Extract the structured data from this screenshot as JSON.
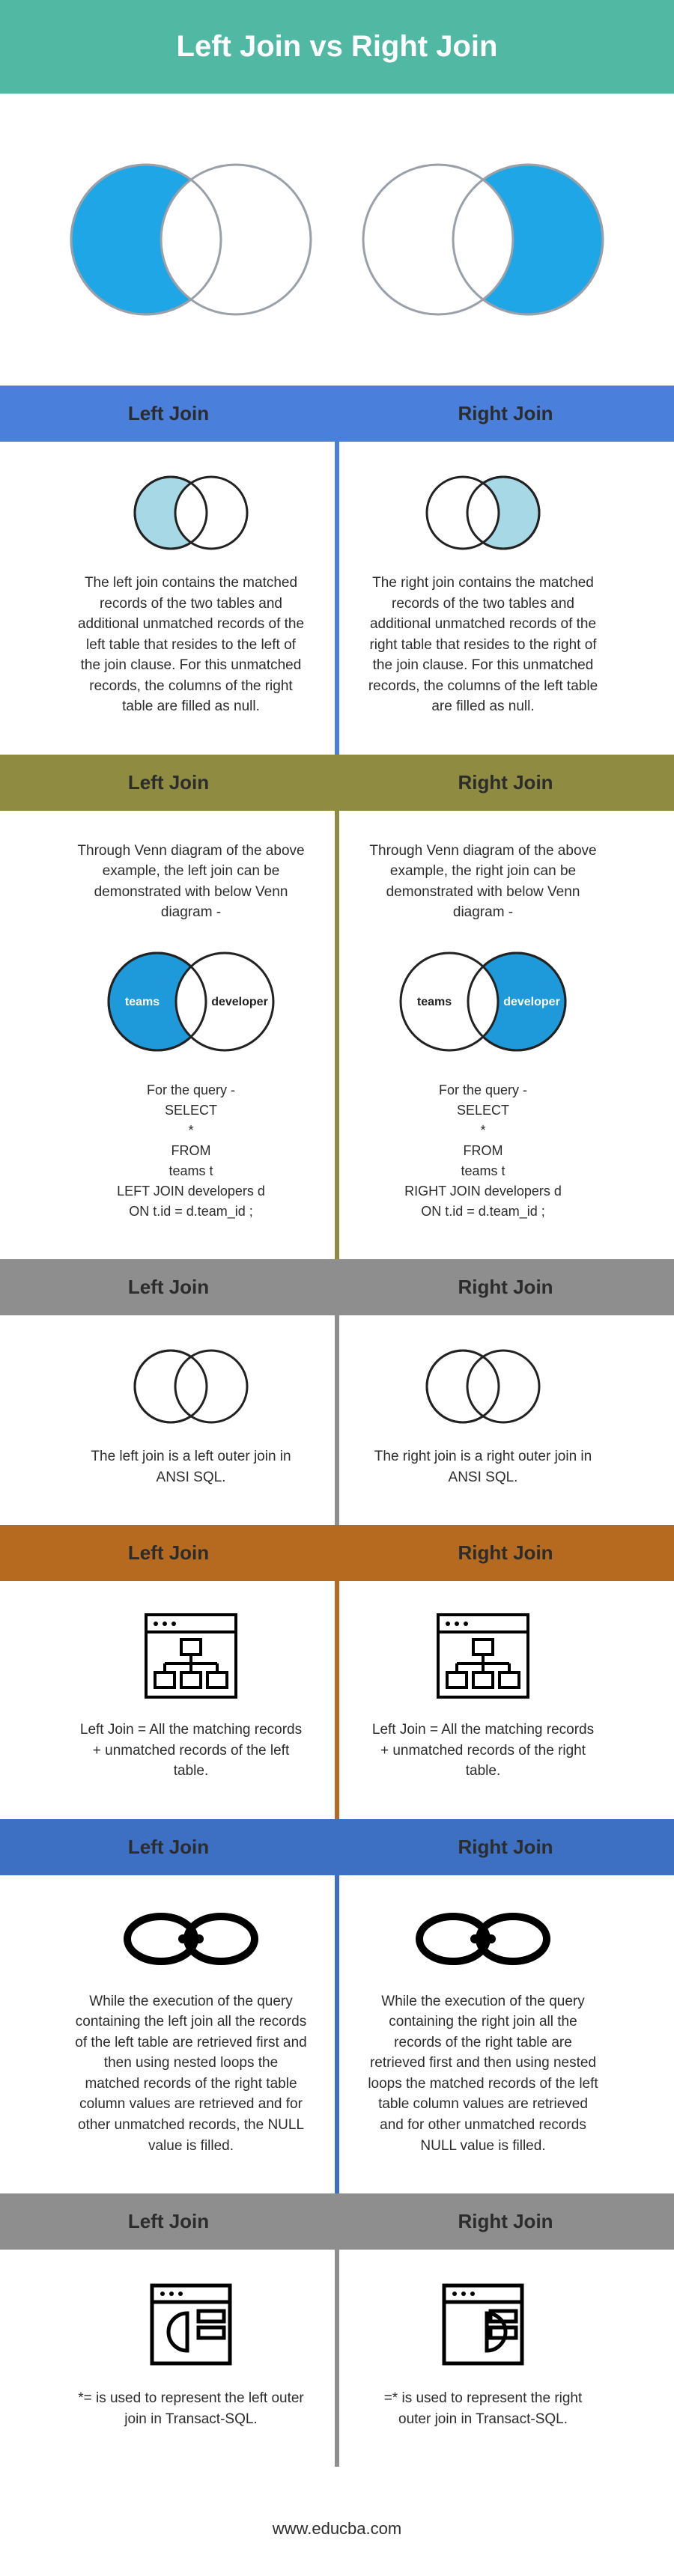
{
  "title": "Left Join vs Right Join",
  "footer": "www.educba.com",
  "hero": {
    "left": {
      "fill_left": "#1ea6e6",
      "fill_right": "#ffffff",
      "stroke": "#9aa0a8"
    },
    "right": {
      "fill_left": "#ffffff",
      "fill_right": "#1ea6e6",
      "stroke": "#9aa0a8"
    }
  },
  "sections": [
    {
      "header_bg": "#4a7fdc",
      "divider": "#4a7fdc",
      "labels": {
        "l": "Left Join",
        "r": "Right Join"
      },
      "venn": {
        "l": {
          "fill_left": "#a6d8e6",
          "fill_right": "#ffffff",
          "stroke": "#222222"
        },
        "r": {
          "fill_left": "#ffffff",
          "fill_right": "#a6d8e6",
          "stroke": "#222222"
        }
      },
      "text": {
        "l": "The left join contains the matched records of the two tables and additional unmatched records of the left table that resides to the left of the join clause. For this unmatched records, the columns of the right table are filled as null.",
        "r": "The right join contains the matched records of the two tables and additional unmatched records of the right table that resides to the right of the join clause. For this unmatched records, the columns of the left table are filled as null."
      }
    },
    {
      "header_bg": "#8f8c42",
      "divider": "#8f8c42",
      "labels": {
        "l": "Left Join",
        "r": "Right Join"
      },
      "intro": {
        "l": "Through Venn diagram of the above example, the left join can be demonstrated with below Venn diagram -",
        "r": "Through Venn diagram of the above example, the right join can be demonstrated with below Venn diagram -"
      },
      "venn_labeled": {
        "l": {
          "fill_left": "#1e9adb",
          "fill_right": "#ffffff",
          "stroke": "#222222",
          "label_l": "teams",
          "label_r": "developer"
        },
        "r": {
          "fill_left": "#ffffff",
          "fill_right": "#1e9adb",
          "stroke": "#222222",
          "label_l": "teams",
          "label_r": "developer"
        }
      },
      "code": {
        "l": "For the query -\nSELECT\n*\nFROM\nteams t\nLEFT JOIN developers d\nON t.id = d.team_id ;",
        "r": "For the query -\nSELECT\n*\nFROM\nteams t\nRIGHT JOIN developers d\nON t.id = d.team_id ;"
      }
    },
    {
      "header_bg": "#8e8e8e",
      "divider": "#8e8e8e",
      "labels": {
        "l": "Left Join",
        "r": "Right Join"
      },
      "venn": {
        "l": {
          "fill_left": "#ffffff",
          "fill_right": "#ffffff",
          "stroke": "#222222"
        },
        "r": {
          "fill_left": "#ffffff",
          "fill_right": "#ffffff",
          "stroke": "#222222"
        }
      },
      "text": {
        "l": "The left join is a left outer join in ANSI SQL.",
        "r": "The right join is a right outer join in ANSI SQL."
      }
    },
    {
      "header_bg": "#b56a20",
      "divider": "#b56a20",
      "labels": {
        "l": "Left Join",
        "r": "Right Join"
      },
      "icon": "schema",
      "text": {
        "l": "Left Join = All the matching records + unmatched records of the left table.",
        "r": "Left Join = All the matching records + unmatched records of the right table."
      }
    },
    {
      "header_bg": "#3d6fc3",
      "divider": "#3d6fc3",
      "labels": {
        "l": "Left Join",
        "r": "Right Join"
      },
      "icon": "chain",
      "text": {
        "l": "While the execution of the query containing the left join all the records of the left table are retrieved first and then using nested loops the matched records of the right table column values are retrieved and for other unmatched records, the NULL value is filled.",
        "r": "While the execution of the query containing the right join all the records of the right table are retrieved first and then using nested loops the matched records of the left table column values are retrieved and for other unmatched records NULL value is filled."
      }
    },
    {
      "header_bg": "#8e8e8e",
      "divider": "#8e8e8e",
      "labels": {
        "l": "Left Join",
        "r": "Right Join"
      },
      "icon": "window",
      "text": {
        "l": "*= is used to represent the left outer join in Transact-SQL.",
        "r": "=* is used to represent the right outer join in Transact-SQL."
      }
    }
  ]
}
